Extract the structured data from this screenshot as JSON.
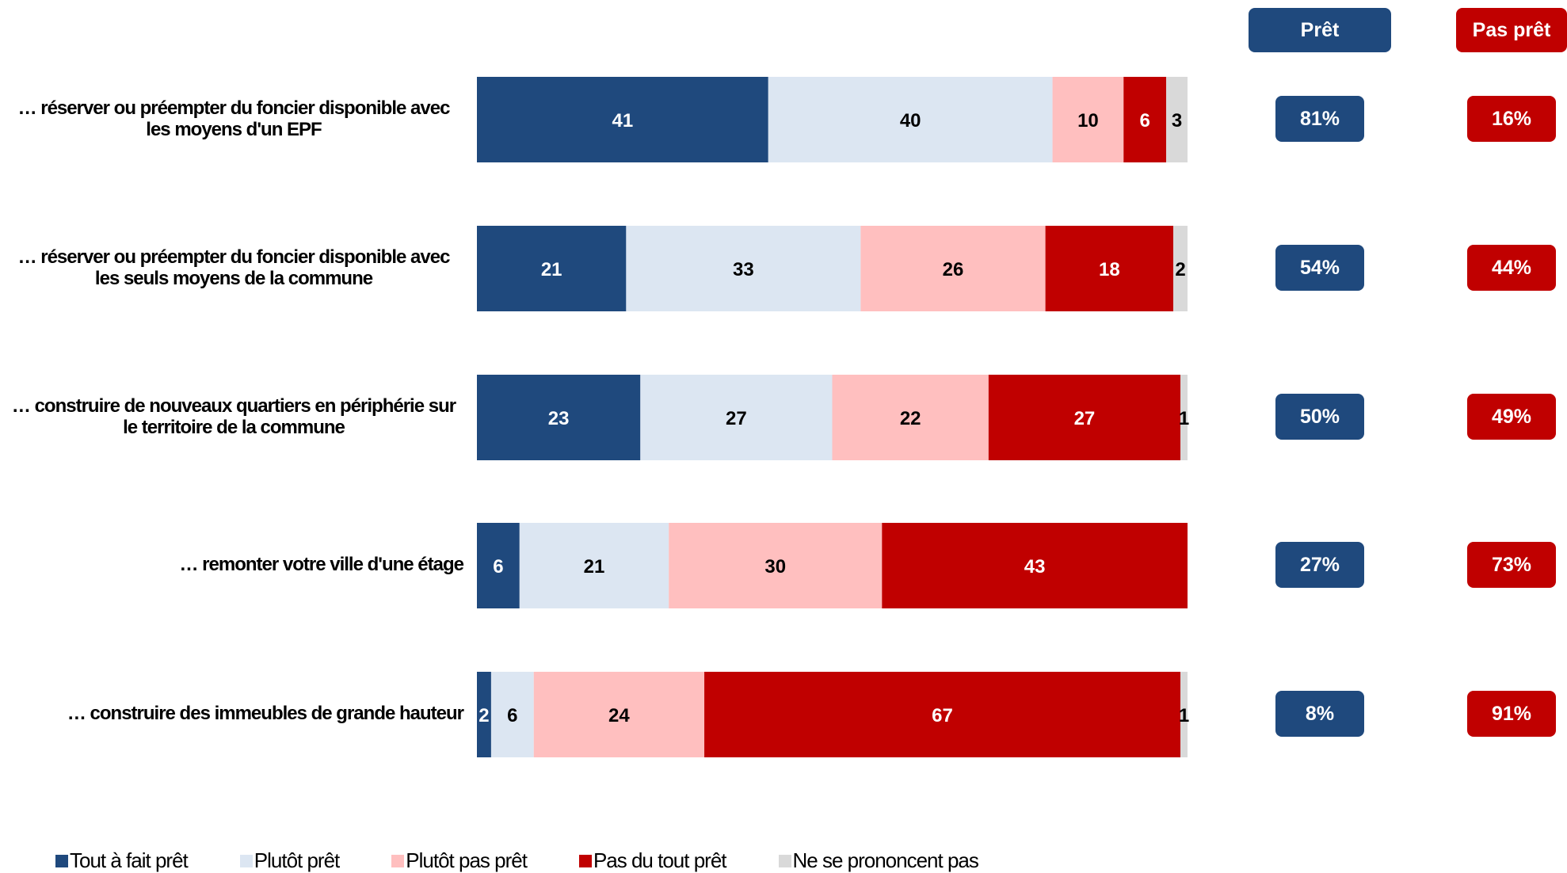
{
  "chart_data": {
    "type": "bar",
    "orientation": "horizontal",
    "stacked": true,
    "categories": [
      "… réserver ou préempter du foncier disponible avec les moyens d'un EPF",
      "… réserver ou préempter du foncier disponible avec les seuls moyens de la commune",
      "… construire de nouveaux quartiers en périphérie sur le territoire de la commune",
      "… remonter votre ville d'une étage",
      "… construire des immeubles de grande hauteur"
    ],
    "series": [
      {
        "name": "Tout à fait prêt",
        "color": "#1f497d",
        "text_color": "#ffffff",
        "values": [
          41,
          21,
          23,
          6,
          2
        ]
      },
      {
        "name": "Plutôt prêt",
        "color": "#dce6f2",
        "text_color": "#000000",
        "values": [
          40,
          33,
          27,
          21,
          6
        ]
      },
      {
        "name": "Plutôt pas prêt",
        "color": "#ffbfbf",
        "text_color": "#000000",
        "values": [
          10,
          26,
          22,
          30,
          24
        ]
      },
      {
        "name": "Pas du tout prêt",
        "color": "#c00000",
        "text_color": "#ffffff",
        "values": [
          6,
          18,
          27,
          43,
          67
        ]
      },
      {
        "name": "Ne se prononcent pas",
        "color": "#d9d9d9",
        "text_color": "#000000",
        "values": [
          3,
          2,
          1,
          0,
          1
        ]
      }
    ],
    "summary_columns": [
      {
        "header": "Prêt",
        "color": "#1f497d",
        "values": [
          "81%",
          "54%",
          "50%",
          "27%",
          "8%"
        ]
      },
      {
        "header": "Pas prêt",
        "color": "#c00000",
        "values": [
          "16%",
          "44%",
          "49%",
          "73%",
          "91%"
        ]
      }
    ],
    "xlim": [
      0,
      100
    ],
    "legend_position": "bottom",
    "grid": false
  }
}
